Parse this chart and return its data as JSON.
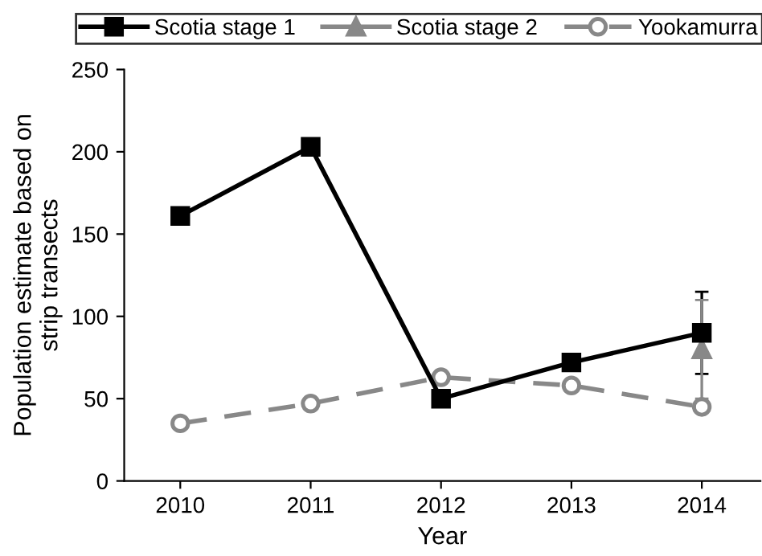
{
  "chart_data": {
    "type": "line",
    "xlabel": "Year",
    "ylabel": "Population estimate based on\nstrip transects",
    "x": [
      2010,
      2011,
      2012,
      2013,
      2014
    ],
    "series": [
      {
        "name": "Scotia stage 1",
        "color": "#000000",
        "marker": "square",
        "line_style": "solid",
        "values": [
          161,
          203,
          50,
          72,
          90
        ],
        "errors": [
          null,
          null,
          null,
          null,
          25
        ]
      },
      {
        "name": "Scotia stage 2",
        "color": "#888888",
        "marker": "triangle",
        "line_style": "solid",
        "x": [
          2014
        ],
        "values": [
          80
        ],
        "errors": [
          30
        ]
      },
      {
        "name": "Yookamurra",
        "color": "#888888",
        "marker": "circle",
        "line_style": "dashed",
        "values": [
          35,
          47,
          63,
          58,
          45
        ]
      }
    ],
    "xlim": [
      2009.57,
      2014.45
    ],
    "xticks": [
      2010,
      2011,
      2012,
      2013,
      2014
    ],
    "ylim": [
      0,
      250
    ],
    "yticks": [
      0,
      50,
      100,
      150,
      200,
      250
    ],
    "grid": false,
    "legend": "top"
  }
}
